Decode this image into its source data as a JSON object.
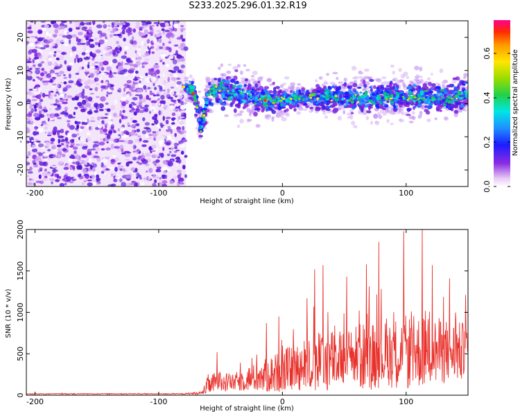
{
  "title": "S233.2025.296.01.32.R19",
  "chart_data": [
    {
      "type": "heatmap",
      "xlabel": "Height of straight line (km)",
      "ylabel": "Frequency (Hz)",
      "xlim": [
        -207,
        150
      ],
      "ylim": [
        -25,
        25
      ],
      "xticks": [
        -200,
        -100,
        0,
        100
      ],
      "yticks": [
        -20,
        -10,
        0,
        10,
        20
      ],
      "xtick_labels": [
        "-200",
        "-100",
        "0",
        "100"
      ],
      "ytick_labels": [
        "-20",
        "-10",
        "0",
        "10",
        "20"
      ],
      "noise_region_x": [
        -207,
        -78
      ],
      "signal_track": {
        "x": [
          -78,
          -72,
          -66,
          -60,
          -55,
          -45,
          -35,
          -25,
          -15,
          0,
          15,
          30,
          45,
          60,
          75,
          90,
          105,
          120,
          135,
          150
        ],
        "center_freq": [
          5,
          4,
          -7,
          2,
          4,
          4,
          3,
          2,
          1,
          1,
          2,
          2,
          2,
          2,
          2,
          2,
          2,
          2,
          2,
          3
        ],
        "spread": [
          2,
          3,
          4,
          4,
          4,
          5,
          5,
          4,
          4,
          3,
          3,
          3,
          4,
          4,
          4,
          4,
          4,
          4,
          4,
          4
        ]
      },
      "colorbar": {
        "label": "Normalized spectral amplitude",
        "range": [
          0,
          0.75
        ],
        "ticks": [
          0.0,
          0.2,
          0.4,
          0.6
        ],
        "tick_labels": [
          "0.0",
          "0.2",
          "0.4",
          "0.6"
        ]
      }
    },
    {
      "type": "line",
      "xlabel": "Height of straight line (km)",
      "ylabel": "SNR (10 * v/v)",
      "xlim": [
        -207,
        150
      ],
      "ylim": [
        0,
        2000
      ],
      "xticks": [
        -200,
        -100,
        0,
        100
      ],
      "yticks": [
        0,
        500,
        1000,
        1500,
        2000
      ],
      "xtick_labels": [
        "-200",
        "-100",
        "0",
        "100"
      ],
      "ytick_labels": [
        "0",
        "500",
        "1000",
        "1500",
        "2000"
      ],
      "color": "#e8312b",
      "envelope": {
        "x": [
          -207,
          -80,
          -65,
          -60,
          -50,
          -40,
          -30,
          -20,
          -10,
          0,
          10,
          20,
          30,
          40,
          50,
          60,
          70,
          80,
          90,
          100,
          110,
          120,
          130,
          140,
          150
        ],
        "base": [
          15,
          15,
          20,
          90,
          130,
          120,
          150,
          160,
          180,
          220,
          250,
          270,
          290,
          310,
          320,
          340,
          350,
          360,
          380,
          380,
          390,
          400,
          410,
          400,
          420
        ],
        "amp": [
          10,
          10,
          40,
          250,
          250,
          200,
          300,
          350,
          450,
          500,
          550,
          650,
          700,
          750,
          700,
          800,
          850,
          800,
          850,
          900,
          900,
          850,
          800,
          750,
          700
        ]
      },
      "peaks": [
        {
          "x": -53,
          "y": 520
        },
        {
          "x": -13,
          "y": 870
        },
        {
          "x": -3,
          "y": 950
        },
        {
          "x": 20,
          "y": 1170
        },
        {
          "x": 26,
          "y": 1520
        },
        {
          "x": 33,
          "y": 1570
        },
        {
          "x": 52,
          "y": 1430
        },
        {
          "x": 68,
          "y": 1580
        },
        {
          "x": 78,
          "y": 1850
        },
        {
          "x": 98,
          "y": 1980
        },
        {
          "x": 113,
          "y": 2010
        },
        {
          "x": 121,
          "y": 1570
        },
        {
          "x": 135,
          "y": 1410
        },
        {
          "x": 148,
          "y": 1210
        }
      ]
    }
  ]
}
